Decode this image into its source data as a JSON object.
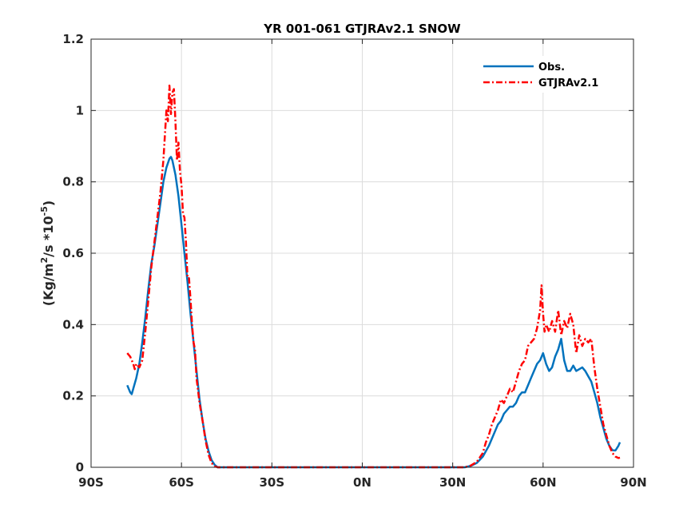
{
  "chart_data": {
    "type": "line",
    "title": "YR 001-061 GTJRAv2.1 SNOW",
    "xlabel": "",
    "ylabel": "(Kg/m^2/s *10^-5)",
    "ylabel_parts": {
      "p1": "(Kg/m",
      "sup1": "2",
      "p2": "/s *10",
      "sup2": "-5",
      "p3": ")"
    },
    "xlim": [
      -90,
      90
    ],
    "ylim": [
      0,
      1.2
    ],
    "x_ticks": [
      {
        "value": -90,
        "label": "90S"
      },
      {
        "value": -60,
        "label": "60S"
      },
      {
        "value": -30,
        "label": "30S"
      },
      {
        "value": 0,
        "label": "0N"
      },
      {
        "value": 30,
        "label": "30N"
      },
      {
        "value": 60,
        "label": "60N"
      },
      {
        "value": 90,
        "label": "90N"
      }
    ],
    "y_ticks": [
      {
        "value": 0,
        "label": "0"
      },
      {
        "value": 0.2,
        "label": "0.2"
      },
      {
        "value": 0.4,
        "label": "0.4"
      },
      {
        "value": 0.6,
        "label": "0.6"
      },
      {
        "value": 0.8,
        "label": "0.8"
      },
      {
        "value": 1.0,
        "label": "1"
      },
      {
        "value": 1.2,
        "label": "1.2"
      }
    ],
    "grid": true,
    "legend_position": "top-right",
    "series": [
      {
        "name": "Obs.",
        "color": "#0072BD",
        "style": "solid",
        "points": [
          [
            -78,
            0.23
          ],
          [
            -77,
            0.21
          ],
          [
            -76.5,
            0.205
          ],
          [
            -76,
            0.22
          ],
          [
            -75,
            0.25
          ],
          [
            -74,
            0.29
          ],
          [
            -73,
            0.35
          ],
          [
            -72,
            0.42
          ],
          [
            -71,
            0.5
          ],
          [
            -70,
            0.57
          ],
          [
            -69,
            0.62
          ],
          [
            -68,
            0.68
          ],
          [
            -67,
            0.74
          ],
          [
            -66,
            0.8
          ],
          [
            -65,
            0.84
          ],
          [
            -64,
            0.865
          ],
          [
            -63.5,
            0.87
          ],
          [
            -63,
            0.86
          ],
          [
            -62,
            0.82
          ],
          [
            -61,
            0.76
          ],
          [
            -60,
            0.68
          ],
          [
            -59,
            0.6
          ],
          [
            -58,
            0.52
          ],
          [
            -57,
            0.43
          ],
          [
            -56,
            0.35
          ],
          [
            -55,
            0.27
          ],
          [
            -54,
            0.19
          ],
          [
            -53,
            0.13
          ],
          [
            -52,
            0.08
          ],
          [
            -51,
            0.045
          ],
          [
            -50,
            0.02
          ],
          [
            -49,
            0.007
          ],
          [
            -48,
            0.0
          ],
          [
            -30,
            0.0
          ],
          [
            0,
            0.0
          ],
          [
            30,
            0.0
          ],
          [
            34,
            0.0
          ],
          [
            36,
            0.004
          ],
          [
            38,
            0.012
          ],
          [
            40,
            0.03
          ],
          [
            42,
            0.06
          ],
          [
            43,
            0.08
          ],
          [
            44,
            0.1
          ],
          [
            45,
            0.12
          ],
          [
            46,
            0.13
          ],
          [
            47,
            0.15
          ],
          [
            48,
            0.16
          ],
          [
            49,
            0.17
          ],
          [
            50,
            0.17
          ],
          [
            51,
            0.18
          ],
          [
            52,
            0.2
          ],
          [
            53,
            0.21
          ],
          [
            54,
            0.21
          ],
          [
            55,
            0.23
          ],
          [
            56,
            0.25
          ],
          [
            57,
            0.27
          ],
          [
            58,
            0.29
          ],
          [
            59,
            0.3
          ],
          [
            60,
            0.32
          ],
          [
            61,
            0.29
          ],
          [
            62,
            0.27
          ],
          [
            63,
            0.28
          ],
          [
            64,
            0.31
          ],
          [
            65,
            0.33
          ],
          [
            66,
            0.36
          ],
          [
            67,
            0.3
          ],
          [
            68,
            0.27
          ],
          [
            69,
            0.27
          ],
          [
            70,
            0.285
          ],
          [
            71,
            0.27
          ],
          [
            72,
            0.275
          ],
          [
            73,
            0.28
          ],
          [
            74,
            0.27
          ],
          [
            75,
            0.255
          ],
          [
            76,
            0.24
          ],
          [
            77,
            0.21
          ],
          [
            78,
            0.18
          ],
          [
            79,
            0.14
          ],
          [
            80,
            0.11
          ],
          [
            81,
            0.08
          ],
          [
            82,
            0.06
          ],
          [
            83,
            0.048
          ],
          [
            84,
            0.047
          ],
          [
            85,
            0.06
          ],
          [
            85.5,
            0.07
          ]
        ]
      },
      {
        "name": "GTJRAv2.1",
        "color": "#FF0000",
        "style": "dashdot",
        "points": [
          [
            -78,
            0.32
          ],
          [
            -77,
            0.31
          ],
          [
            -76,
            0.29
          ],
          [
            -75.5,
            0.275
          ],
          [
            -75,
            0.29
          ],
          [
            -74,
            0.28
          ],
          [
            -73,
            0.3
          ],
          [
            -72,
            0.38
          ],
          [
            -71,
            0.47
          ],
          [
            -70,
            0.56
          ],
          [
            -69,
            0.63
          ],
          [
            -68,
            0.7
          ],
          [
            -67,
            0.77
          ],
          [
            -66,
            0.86
          ],
          [
            -65.5,
            0.93
          ],
          [
            -65,
            1.0
          ],
          [
            -64.5,
            0.97
          ],
          [
            -64,
            1.07
          ],
          [
            -63.5,
            0.99
          ],
          [
            -63,
            1.05
          ],
          [
            -62.5,
            1.06
          ],
          [
            -62,
            0.97
          ],
          [
            -61.5,
            0.86
          ],
          [
            -61,
            0.91
          ],
          [
            -60.5,
            0.83
          ],
          [
            -60,
            0.79
          ],
          [
            -59.5,
            0.71
          ],
          [
            -59,
            0.7
          ],
          [
            -58.5,
            0.63
          ],
          [
            -58,
            0.53
          ],
          [
            -57.5,
            0.53
          ],
          [
            -57,
            0.47
          ],
          [
            -56.5,
            0.4
          ],
          [
            -56,
            0.35
          ],
          [
            -55.5,
            0.33
          ],
          [
            -55,
            0.25
          ],
          [
            -54,
            0.18
          ],
          [
            -53,
            0.13
          ],
          [
            -52,
            0.075
          ],
          [
            -51,
            0.035
          ],
          [
            -50,
            0.012
          ],
          [
            -49,
            0.003
          ],
          [
            -48,
            0.0
          ],
          [
            -30,
            0.0
          ],
          [
            0,
            0.0
          ],
          [
            30,
            0.0
          ],
          [
            34,
            0.0
          ],
          [
            36,
            0.005
          ],
          [
            38,
            0.015
          ],
          [
            40,
            0.04
          ],
          [
            41,
            0.07
          ],
          [
            42,
            0.09
          ],
          [
            43,
            0.12
          ],
          [
            44,
            0.14
          ],
          [
            45,
            0.16
          ],
          [
            46,
            0.19
          ],
          [
            47,
            0.18
          ],
          [
            48,
            0.2
          ],
          [
            49,
            0.22
          ],
          [
            50,
            0.21
          ],
          [
            51,
            0.24
          ],
          [
            52,
            0.27
          ],
          [
            53,
            0.29
          ],
          [
            54,
            0.3
          ],
          [
            55,
            0.34
          ],
          [
            56,
            0.35
          ],
          [
            57,
            0.36
          ],
          [
            58,
            0.39
          ],
          [
            59,
            0.44
          ],
          [
            59.5,
            0.51
          ],
          [
            60,
            0.43
          ],
          [
            60.5,
            0.38
          ],
          [
            61,
            0.4
          ],
          [
            62,
            0.38
          ],
          [
            63,
            0.41
          ],
          [
            64,
            0.38
          ],
          [
            65,
            0.44
          ],
          [
            66,
            0.37
          ],
          [
            67,
            0.41
          ],
          [
            68,
            0.39
          ],
          [
            69,
            0.43
          ],
          [
            70,
            0.4
          ],
          [
            71,
            0.32
          ],
          [
            72,
            0.37
          ],
          [
            73,
            0.34
          ],
          [
            74,
            0.36
          ],
          [
            75,
            0.35
          ],
          [
            76,
            0.36
          ],
          [
            77,
            0.28
          ],
          [
            78,
            0.22
          ],
          [
            79,
            0.17
          ],
          [
            80,
            0.12
          ],
          [
            81,
            0.09
          ],
          [
            82,
            0.06
          ],
          [
            83,
            0.04
          ],
          [
            84,
            0.03
          ],
          [
            85,
            0.026
          ],
          [
            85.5,
            0.027
          ]
        ]
      }
    ]
  }
}
